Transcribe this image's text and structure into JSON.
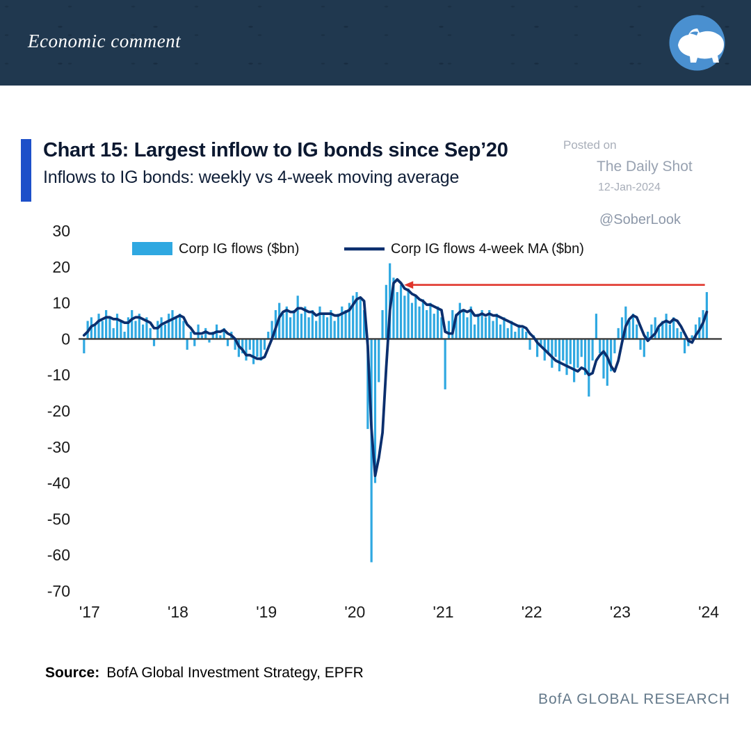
{
  "header": {
    "title": "Economic comment"
  },
  "chart": {
    "title": "Chart 15: Largest inflow to IG bonds since Sep’20",
    "subtitle": "Inflows to IG bonds: weekly vs 4-week moving average",
    "watermark": {
      "posted_on": "Posted on",
      "site": "The Daily Shot",
      "date": "12-Jan-2024",
      "handle": "@SoberLook"
    },
    "source_label": "Source:",
    "source_text": "BofA Global Investment Strategy, EPFR",
    "branding": "BofA GLOBAL RESEARCH"
  },
  "chart_data": {
    "type": "bar",
    "title": "Chart 15: Largest inflow to IG bonds since Sep’20",
    "subtitle": "Inflows to IG bonds: weekly vs 4-week moving average",
    "ylabel": "$bn",
    "ylim": [
      -70,
      30
    ],
    "yticks": [
      30,
      20,
      10,
      0,
      -10,
      -20,
      -30,
      -40,
      -50,
      -60,
      -70
    ],
    "xticks": [
      "'17",
      "'18",
      "'19",
      "'20",
      "'21",
      "'22",
      "'23",
      "'24"
    ],
    "xtick_years": [
      2017,
      2018,
      2019,
      2020,
      2021,
      2022,
      2023,
      2024
    ],
    "x_range": [
      2016.97,
      2024.07
    ],
    "x_start": 2017.0,
    "x_step_years": 0.041667,
    "grid": false,
    "legend_position": "top-inside",
    "colors": {
      "bars": "#2fa8e1",
      "ma_line": "#0b2f6e",
      "arrow": "#e0352b",
      "zero_line": "#3a3a3a",
      "accent_bar": "#1d50c9"
    },
    "series": [
      {
        "name": "Corp IG flows ($bn)",
        "type": "bar",
        "color": "#2fa8e1",
        "values": [
          -4,
          5,
          6,
          4,
          7,
          5,
          8,
          6,
          3,
          7,
          5,
          2,
          6,
          8,
          5,
          7,
          4,
          6,
          3,
          -2,
          5,
          6,
          4,
          7,
          8,
          6,
          7,
          5,
          -3,
          2,
          -2,
          4,
          1,
          3,
          -1,
          2,
          4,
          1,
          3,
          -2,
          2,
          -3,
          -5,
          -4,
          -6,
          -3,
          -7,
          -5,
          -6,
          -3,
          2,
          5,
          8,
          10,
          7,
          9,
          6,
          8,
          12,
          7,
          9,
          6,
          8,
          5,
          9,
          7,
          6,
          8,
          5,
          7,
          9,
          8,
          10,
          12,
          13,
          11,
          8,
          -25,
          -62,
          -40,
          -12,
          8,
          15,
          21,
          17,
          13,
          15,
          12,
          14,
          10,
          12,
          9,
          11,
          8,
          10,
          7,
          9,
          6,
          -14,
          5,
          8,
          7,
          10,
          8,
          6,
          9,
          4,
          7,
          8,
          6,
          8,
          5,
          7,
          4,
          6,
          3,
          5,
          2,
          4,
          3,
          2,
          -3,
          1,
          -5,
          -2,
          -6,
          -4,
          -8,
          -5,
          -9,
          -6,
          -10,
          -7,
          -12,
          -8,
          -5,
          -10,
          -16,
          -6,
          7,
          -4,
          -11,
          -13,
          -9,
          -4,
          3,
          6,
          9,
          5,
          7,
          4,
          -3,
          -5,
          2,
          4,
          6,
          3,
          5,
          7,
          4,
          6,
          3,
          2,
          -4,
          -2,
          1,
          4,
          6,
          8,
          13
        ]
      },
      {
        "name": "Corp IG flows 4-week MA ($bn)",
        "type": "line",
        "color": "#0b2f6e",
        "values": [
          1,
          2,
          3.5,
          4,
          5,
          5.5,
          6,
          6,
          5.5,
          5.5,
          5,
          4.5,
          4.5,
          5.5,
          6,
          6,
          5.5,
          5,
          4.5,
          3,
          3,
          4,
          4.5,
          5,
          5.5,
          6,
          6.5,
          6,
          4,
          3,
          1.5,
          1.5,
          1.5,
          2,
          1.5,
          1.5,
          2,
          2,
          2.5,
          1.5,
          1,
          0,
          -2,
          -3,
          -4.5,
          -4.5,
          -5,
          -5.5,
          -5.5,
          -5,
          -2.5,
          0,
          3,
          6,
          7.5,
          8,
          7.5,
          7.5,
          8.5,
          8.5,
          8,
          7.5,
          7.5,
          6.5,
          7,
          7,
          7,
          7,
          6.5,
          6.5,
          7,
          7.5,
          8,
          9.5,
          11,
          11.5,
          10.5,
          -2,
          -25,
          -38,
          -33,
          -26,
          -8,
          8,
          15.5,
          16.5,
          15.5,
          14,
          13.5,
          12.5,
          12,
          11,
          10.5,
          9.5,
          9.5,
          9,
          8.5,
          8,
          2,
          1.5,
          1.5,
          6.5,
          7.5,
          8,
          7.5,
          8,
          6.5,
          6.5,
          7,
          6.5,
          7,
          6.5,
          6.5,
          6,
          5.5,
          5,
          4.5,
          4,
          3.5,
          3.5,
          3,
          1.5,
          0.5,
          -1,
          -2,
          -3,
          -4,
          -5,
          -6,
          -6.5,
          -7,
          -7.5,
          -8,
          -8.5,
          -9,
          -8,
          -8.5,
          -10,
          -9.5,
          -6,
          -4.5,
          -3.5,
          -5,
          -7.5,
          -9,
          -6,
          -1,
          3.5,
          5.5,
          6.5,
          6,
          3.5,
          1,
          -0.5,
          0.5,
          1.5,
          3.5,
          4.5,
          5,
          4.5,
          5.5,
          5,
          3.5,
          1.5,
          -0.5,
          -1,
          1,
          2.5,
          4.5,
          7.5
        ]
      }
    ],
    "annotation_arrow": {
      "from_x": 2024.02,
      "to_x": 2020.62,
      "y": 15,
      "color": "#e0352b",
      "direction": "left"
    }
  }
}
